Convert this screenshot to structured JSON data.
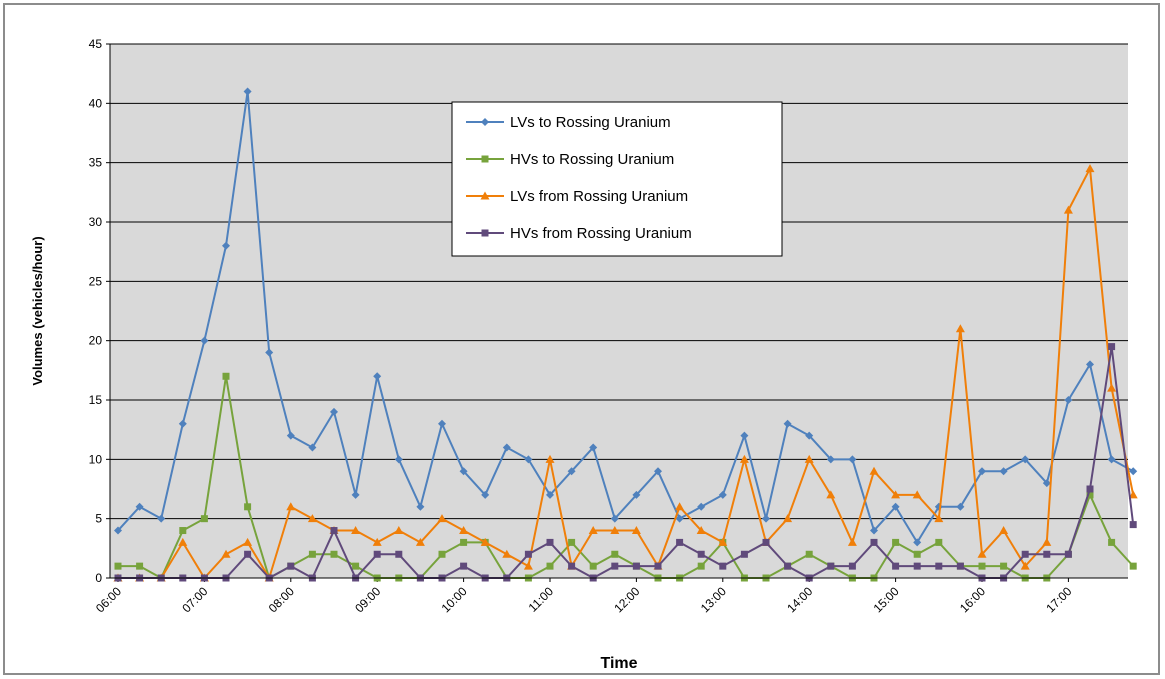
{
  "chart_data": {
    "type": "line",
    "xlabel": "Time",
    "ylabel": "Volumes (vehicles/hour)",
    "ylim": [
      0,
      45
    ],
    "y_ticks": [
      0,
      5,
      10,
      15,
      20,
      25,
      30,
      35,
      40,
      45
    ],
    "x_tick_labels": [
      "06:00",
      "07:00",
      "08:00",
      "09:00",
      "10:00",
      "11:00",
      "12:00",
      "13:00",
      "14:00",
      "15:00",
      "16:00",
      "17:00"
    ],
    "x_interval_minutes": 15,
    "grid": "horizontal",
    "legend_position": "top-center",
    "plot_background": "#d9d9d9",
    "series": [
      {
        "name": "LVs to Rossing  Uranium",
        "color": "#4f81bd",
        "marker": "diamond",
        "values": [
          4,
          6,
          5,
          13,
          20,
          28,
          41,
          19,
          12,
          11,
          14,
          7,
          17,
          10,
          6,
          13,
          9,
          7,
          11,
          10,
          7,
          9,
          11,
          5,
          7,
          9,
          5,
          6,
          7,
          12,
          5,
          13,
          12,
          10,
          10,
          4,
          6,
          3,
          6,
          6,
          9,
          9,
          10,
          8,
          15,
          18,
          10,
          9
        ]
      },
      {
        "name": "HVs to Rossing  Uranium",
        "color": "#77a33c",
        "marker": "square",
        "values": [
          1,
          1,
          0,
          4,
          5,
          17,
          6,
          0,
          1,
          2,
          2,
          1,
          0,
          0,
          0,
          2,
          3,
          3,
          0,
          0,
          1,
          3,
          1,
          2,
          1,
          0,
          0,
          1,
          3,
          0,
          0,
          1,
          2,
          1,
          0,
          0,
          3,
          2,
          3,
          1,
          1,
          1,
          0,
          0,
          2,
          7,
          3,
          1
        ]
      },
      {
        "name": "LVs from Rossing  Uranium",
        "color": "#f07f09",
        "marker": "triangle",
        "values": [
          0,
          0,
          0,
          3,
          0,
          2,
          3,
          0,
          6,
          5,
          4,
          4,
          3,
          4,
          3,
          5,
          4,
          3,
          2,
          1,
          10,
          1,
          4,
          4,
          4,
          1,
          6,
          4,
          3,
          10,
          3,
          5,
          10,
          7,
          3,
          9,
          7,
          7,
          5,
          21,
          2,
          4,
          1,
          3,
          31,
          34.5,
          16,
          7
        ]
      },
      {
        "name": "HVs from Rossing  Uranium",
        "color": "#604a7b",
        "marker": "square",
        "values": [
          0,
          0,
          0,
          0,
          0,
          0,
          2,
          0,
          1,
          0,
          4,
          0,
          2,
          2,
          0,
          0,
          1,
          0,
          0,
          2,
          3,
          1,
          0,
          1,
          1,
          1,
          3,
          2,
          1,
          2,
          3,
          1,
          0,
          1,
          1,
          3,
          1,
          1,
          1,
          1,
          0,
          0,
          2,
          2,
          2,
          7.5,
          19.5,
          4.5
        ]
      }
    ]
  }
}
